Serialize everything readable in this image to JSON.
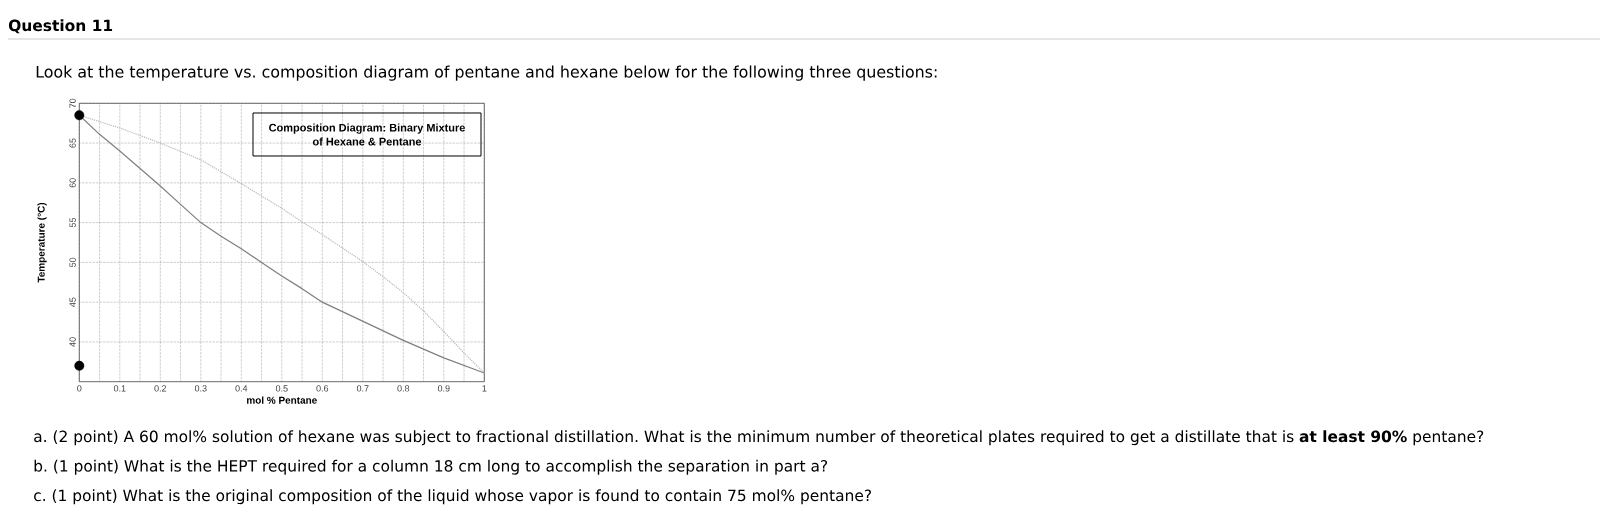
{
  "chart_data": {
    "type": "line",
    "title": "Question 11",
    "subtitle": "Look at the temperature vs. composition diagram of pentane and hexane below for the following three questions:",
    "xlabel": "mol % Pentane",
    "ylabel": "Temperature (°C)",
    "xlim": [
      0,
      1
    ],
    "ylim": [
      35,
      70
    ],
    "xticks": [
      0,
      {
        "value": 0.05,
        "label": null
      },
      0.1,
      {
        "value": 0.15,
        "label": null
      },
      0.2,
      {
        "value": 0.25,
        "label": null
      },
      0.3,
      {
        "value": 0.35,
        "label": null
      },
      0.4,
      {
        "value": 0.45,
        "label": null
      },
      0.5,
      {
        "value": 0.55,
        "label": null
      },
      0.6,
      {
        "value": 0.65,
        "label": null
      },
      0.7,
      {
        "value": 0.75,
        "label": null
      },
      0.8,
      {
        "value": 0.85,
        "label": null
      },
      0.9,
      {
        "value": 0.95,
        "label": null
      },
      1
    ],
    "yticks": [
      40,
      45,
      50,
      55,
      60,
      65,
      70
    ],
    "grid": true,
    "annotations": [
      "Composition Diagram: Binary Mixture of Hexane & Pentane",
      "a. (2 point) A 60 mol% solution of hexane was subject to fractional distillation. What is the minimum number of theoretical plates required to get a distillate that is **at least 90%** pentane?",
      "b. (1 point) What is the HEPT required for a column 18 cm long to accomplish the separation in part a?",
      "c. (1 point) What is the original composition of the liquid whose vapor is found to contain 75 mol% pentane?"
    ],
    "series": [
      {
        "color": "#7f7f7f",
        "line_style": "solid",
        "marker": "none",
        "x": [
          0,
          0.05,
          0.1,
          0.15,
          0.2,
          0.25,
          0.3,
          0.35,
          0.4,
          0.45,
          0.5,
          0.55,
          0.6,
          0.7,
          0.8,
          0.9,
          1
        ],
        "values": [
          68.5,
          66.1,
          64,
          61.8,
          59.6,
          57.3,
          55,
          53.3,
          51.7,
          50,
          48.3,
          46.7,
          45,
          42.6,
          40.2,
          38,
          36.1
        ]
      },
      {
        "color": "#b8b8b8",
        "line_style": "dotted",
        "marker": "none",
        "x": [
          0,
          0.1,
          0.2,
          0.3,
          0.4,
          0.5,
          0.55,
          0.6,
          0.65,
          0.7,
          0.75,
          0.8,
          0.85,
          0.9,
          0.95,
          1
        ],
        "values": [
          68.5,
          66.9,
          65,
          62.9,
          59.9,
          56.8,
          55.1,
          53.5,
          51.8,
          50.1,
          48.2,
          46.2,
          43.9,
          41.3,
          38.6,
          36.1
        ]
      },
      {
        "type": "scatter",
        "color": "#000000",
        "marker": "circle",
        "x": [
          0,
          0
        ],
        "values": [
          68.5,
          37
        ]
      }
    ]
  }
}
